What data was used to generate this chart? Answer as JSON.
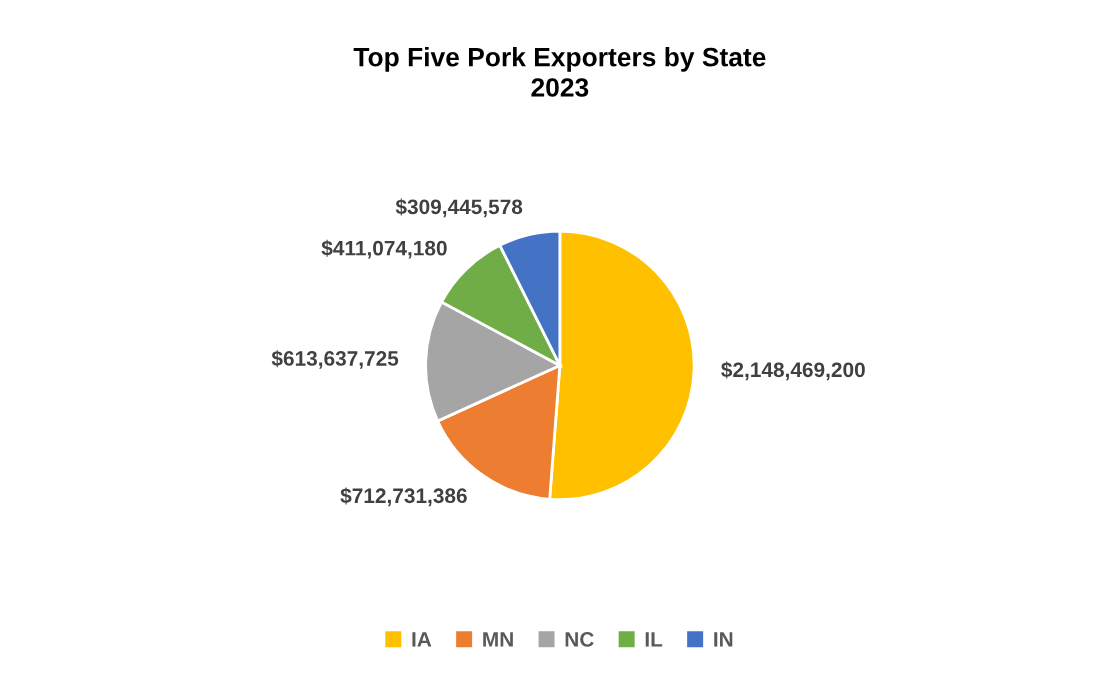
{
  "chart_data": {
    "type": "pie",
    "title": "Top Five Pork Exporters by State\n2023",
    "categories": [
      "IA",
      "MN",
      "NC",
      "IL",
      "IN"
    ],
    "values": [
      2148469200,
      712731386,
      613637725,
      411074180,
      309445578
    ],
    "colors": [
      "#ffc000",
      "#ed7d31",
      "#a5a5a5",
      "#70ad47",
      "#4472c4"
    ],
    "value_labels": [
      "$2,148,469,200",
      "$712,731,386",
      "$613,637,725",
      "$411,074,180",
      "$309,445,578"
    ],
    "legend": "bottom"
  }
}
